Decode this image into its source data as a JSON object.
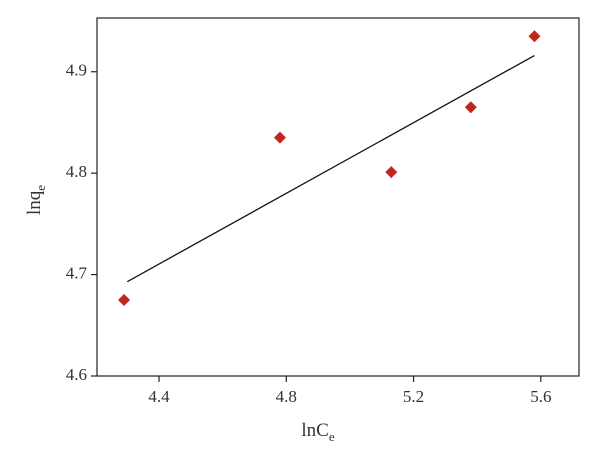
{
  "chart_data": {
    "type": "scatter",
    "x_label": {
      "main": "ln",
      "sub_main": "C",
      "sub": "e"
    },
    "y_label": {
      "main": "lnq",
      "sub": "e"
    },
    "x": [
      4.29,
      4.78,
      5.13,
      5.38,
      5.58
    ],
    "values": [
      4.675,
      4.835,
      4.801,
      4.865,
      4.935
    ],
    "color": "#c0251e",
    "fit": {
      "x": [
        4.3,
        5.58
      ],
      "values": [
        4.693,
        4.916
      ],
      "color": "#111111"
    },
    "xlim": [
      4.205,
      5.72
    ],
    "xticks": [
      4.4,
      4.8,
      5.2,
      5.6
    ],
    "ylim": [
      4.6,
      4.953
    ],
    "yticks": [
      4.6,
      4.7,
      4.8,
      4.9
    ]
  }
}
